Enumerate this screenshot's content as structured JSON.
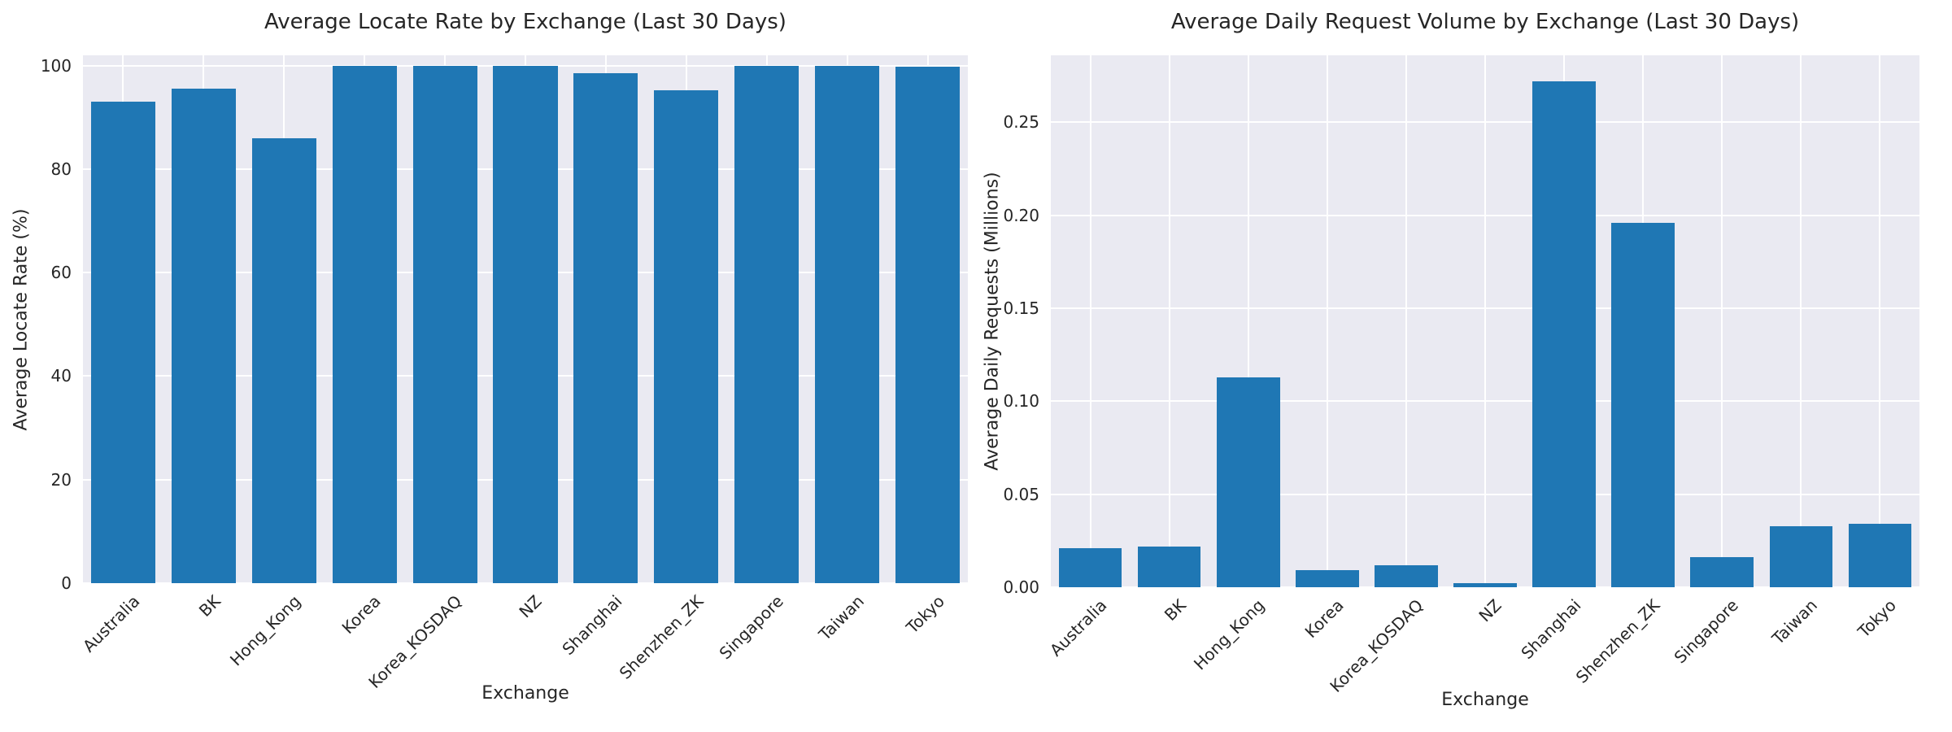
{
  "colors": {
    "bar": "#1f77b4",
    "plot_background": "#eaeaf2",
    "gridline": "#ffffff",
    "text": "#262626",
    "figure_background": "#ffffff"
  },
  "chart_data": [
    {
      "type": "bar",
      "title": "Average Locate Rate by Exchange (Last 30 Days)",
      "xlabel": "Exchange",
      "ylabel": "Average Locate Rate (%)",
      "categories": [
        "Australia",
        "BK",
        "Hong_Kong",
        "Korea",
        "Korea_KOSDAQ",
        "NZ",
        "Shanghai",
        "Shenzhen_ZK",
        "Singapore",
        "Taiwan",
        "Tokyo"
      ],
      "values": [
        93,
        95.5,
        86,
        100,
        100,
        100,
        98.6,
        95.2,
        100,
        100,
        99.8
      ],
      "ylim": [
        0,
        102
      ],
      "yticks": [
        0,
        20,
        40,
        60,
        80,
        100
      ],
      "ytick_labels": [
        "0",
        "20",
        "40",
        "60",
        "80",
        "100"
      ],
      "xtick_rotation_deg": 45,
      "grid": "on",
      "legend": "none",
      "bar_color": "#1f77b4"
    },
    {
      "type": "bar",
      "title": "Average Daily Request Volume by Exchange (Last 30 Days)",
      "xlabel": "Exchange",
      "ylabel": "Average Daily Requests (Millions)",
      "categories": [
        "Australia",
        "BK",
        "Hong_Kong",
        "Korea",
        "Korea_KOSDAQ",
        "NZ",
        "Shanghai",
        "Shenzhen_ZK",
        "Singapore",
        "Taiwan",
        "Tokyo"
      ],
      "values": [
        0.021,
        0.022,
        0.113,
        0.009,
        0.012,
        0.002,
        0.272,
        0.196,
        0.016,
        0.033,
        0.034
      ],
      "ylim": [
        0,
        0.286
      ],
      "yticks": [
        0,
        0.05,
        0.1,
        0.15,
        0.2,
        0.25
      ],
      "ytick_labels": [
        "0.00",
        "0.05",
        "0.10",
        "0.15",
        "0.20",
        "0.25"
      ],
      "xtick_rotation_deg": 45,
      "grid": "on",
      "legend": "none",
      "bar_color": "#1f77b4"
    }
  ]
}
